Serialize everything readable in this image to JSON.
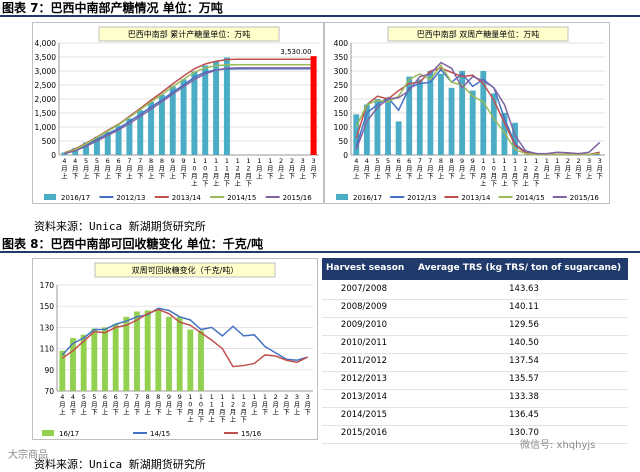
{
  "page": {
    "fig7_title": "图表 7：巴西中南部产糖情况   单位：万吨",
    "fig8_title": "图表 8：巴西中南部可回收糖变化   单位：千克/吨",
    "source1": "资料来源：Unica   新湖期货研究所",
    "source2": "资料来源：Unica   新湖期货研究所",
    "watermark_left": "大宗商品",
    "watermark_right": "微信号: xhqhyjs"
  },
  "colors": {
    "bar": "#4bacc6",
    "bar_green": "#92d050",
    "s2012": "#4472c4",
    "s2013": "#c0504d",
    "s2014": "#9bbb59",
    "s2015": "#8064a2",
    "highlight": "#ff0000",
    "table_head": "#1f3a6b"
  },
  "chart_data": [
    {
      "type": "bar",
      "title": "巴西中南部 累计产糖量单位：万吨",
      "categories": [
        "4月上",
        "4月下",
        "5月上",
        "5月下",
        "6月上",
        "6月下",
        "7月上",
        "7月下",
        "8月上",
        "8月下",
        "9月上",
        "9月下",
        "10月上",
        "10月下",
        "11月上",
        "11月下",
        "12月上",
        "12月下",
        "1月上",
        "1月下",
        "2月上",
        "2月下",
        "3月上",
        "3月下"
      ],
      "ylim": [
        0,
        4000
      ],
      "yticks": [
        "0",
        "500",
        "1,000",
        "1,500",
        "2,000",
        "2,500",
        "3,000",
        "3,500",
        "4,000"
      ],
      "yticks_values": [
        0,
        500,
        1000,
        1500,
        2000,
        2500,
        3000,
        3500,
        4000
      ],
      "annotation": "3,530.00",
      "annotation_value": 3530,
      "series": [
        {
          "name": "2016/17",
          "kind": "bar",
          "values": [
            90,
            250,
            450,
            650,
            820,
            1050,
            1300,
            1600,
            1900,
            2150,
            2450,
            2700,
            2980,
            3200,
            3350,
            3480,
            null,
            null,
            null,
            null,
            null,
            null,
            null,
            null
          ]
        },
        {
          "name": "2012/13",
          "kind": "line",
          "values": [
            60,
            180,
            350,
            560,
            760,
            950,
            1200,
            1450,
            1720,
            1960,
            2250,
            2500,
            2780,
            2960,
            3040,
            3070,
            3075,
            3080,
            3080,
            3080,
            3080,
            3080,
            3080,
            3080
          ]
        },
        {
          "name": "2013/14",
          "kind": "line",
          "values": [
            80,
            220,
            420,
            640,
            880,
            1100,
            1380,
            1660,
            1960,
            2240,
            2540,
            2820,
            3080,
            3250,
            3350,
            3410,
            3420,
            3420,
            3420,
            3420,
            3420,
            3420,
            3420,
            3420
          ]
        },
        {
          "name": "2014/15",
          "kind": "line",
          "values": [
            70,
            200,
            400,
            620,
            850,
            1080,
            1350,
            1620,
            1900,
            2160,
            2440,
            2700,
            2960,
            3110,
            3190,
            3220,
            3225,
            3225,
            3225,
            3225,
            3225,
            3225,
            3225,
            3225
          ]
        },
        {
          "name": "2015/16",
          "kind": "line",
          "values": [
            50,
            150,
            310,
            500,
            700,
            900,
            1120,
            1380,
            1640,
            1900,
            2180,
            2440,
            2700,
            2900,
            3030,
            3100,
            3110,
            3110,
            3110,
            3110,
            3110,
            3110,
            3110,
            3110
          ]
        }
      ]
    },
    {
      "type": "bar",
      "title": "巴西中南部 双周产糖量单位：万吨",
      "categories": [
        "4月上",
        "4月下",
        "5月上",
        "5月下",
        "6月上",
        "6月下",
        "7月上",
        "7月下",
        "8月上",
        "8月下",
        "9月上",
        "9月下",
        "10月上",
        "10月下",
        "11月上",
        "11月下",
        "12月上",
        "12月下",
        "1月上",
        "1月下",
        "2月上",
        "2月下",
        "3月上",
        "3月下"
      ],
      "ylim": [
        0,
        400
      ],
      "yticks": [
        "0",
        "50",
        "100",
        "150",
        "200",
        "250",
        "300",
        "350",
        "400"
      ],
      "yticks_values": [
        0,
        50,
        100,
        150,
        200,
        250,
        300,
        350,
        400
      ],
      "series": [
        {
          "name": "2016/17",
          "kind": "bar",
          "values": [
            145,
            180,
            200,
            200,
            120,
            280,
            270,
            300,
            290,
            240,
            300,
            230,
            300,
            220,
            150,
            115,
            null,
            null,
            null,
            null,
            null,
            null,
            null,
            null
          ]
        },
        {
          "name": "2012/13",
          "kind": "line",
          "values": [
            30,
            150,
            180,
            205,
            160,
            240,
            255,
            260,
            305,
            260,
            290,
            245,
            270,
            240,
            130,
            40,
            10,
            5,
            2,
            2,
            2,
            2,
            2,
            2
          ]
        },
        {
          "name": "2013/14",
          "kind": "line",
          "values": [
            60,
            180,
            210,
            200,
            230,
            255,
            260,
            300,
            310,
            295,
            280,
            285,
            255,
            195,
            115,
            35,
            8,
            3,
            2,
            2,
            2,
            2,
            2,
            10
          ]
        },
        {
          "name": "2014/15",
          "kind": "line",
          "values": [
            100,
            180,
            195,
            190,
            210,
            270,
            290,
            270,
            320,
            260,
            250,
            210,
            190,
            130,
            80,
            20,
            5,
            2,
            2,
            2,
            2,
            2,
            2,
            5
          ]
        },
        {
          "name": "2015/16",
          "kind": "line",
          "values": [
            20,
            120,
            170,
            200,
            205,
            230,
            280,
            290,
            330,
            310,
            240,
            280,
            265,
            240,
            180,
            70,
            15,
            5,
            5,
            10,
            8,
            5,
            10,
            45
          ]
        }
      ]
    },
    {
      "type": "bar",
      "title": "双周可回收糖变化（千克/吨）",
      "categories": [
        "4月上",
        "4月下",
        "5月上",
        "5月下",
        "6月上",
        "6月下",
        "7月上",
        "7月下",
        "8月上",
        "8月下",
        "9月上",
        "9月下",
        "10月上",
        "10月下",
        "11月上",
        "11月下",
        "12月上",
        "12月下",
        "1月上",
        "1月下",
        "2月上",
        "2月下",
        "3月上",
        "3月下"
      ],
      "ylim": [
        70,
        170
      ],
      "yticks": [
        "70",
        "90",
        "110",
        "130",
        "150",
        "170"
      ],
      "yticks_values": [
        70,
        90,
        110,
        130,
        150,
        170
      ],
      "series": [
        {
          "name": "16/17",
          "kind": "bar",
          "values": [
            108,
            120,
            123,
            129,
            130,
            133,
            140,
            145,
            146,
            147,
            140,
            140,
            128,
            127,
            null,
            null,
            null,
            null,
            null,
            null,
            null,
            null,
            null,
            null
          ]
        },
        {
          "name": "14/15",
          "kind": "line",
          "values": [
            104,
            115,
            120,
            128,
            128,
            133,
            136,
            140,
            142,
            148,
            146,
            140,
            137,
            128,
            130,
            122,
            131,
            122,
            123,
            112,
            106,
            100,
            99,
            102
          ]
        },
        {
          "name": "15/16",
          "kind": "line",
          "values": [
            101,
            108,
            117,
            126,
            125,
            130,
            132,
            137,
            143,
            147,
            143,
            135,
            132,
            125,
            118,
            110,
            93,
            94,
            96,
            104,
            103,
            99,
            97,
            102
          ]
        }
      ]
    },
    {
      "type": "table",
      "columns": [
        "Harvest season",
        "Average TRS (kg TRS/ ton of sugarcane)"
      ],
      "rows": [
        [
          "2007/2008",
          "143.63"
        ],
        [
          "2008/2009",
          "140.11"
        ],
        [
          "2009/2010",
          "129.56"
        ],
        [
          "2010/2011",
          "140.50"
        ],
        [
          "2011/2012",
          "137.54"
        ],
        [
          "2012/2013",
          "135.57"
        ],
        [
          "2013/2014",
          "133.38"
        ],
        [
          "2014/2015",
          "136.45"
        ],
        [
          "2015/2016",
          "130.70"
        ]
      ]
    }
  ]
}
